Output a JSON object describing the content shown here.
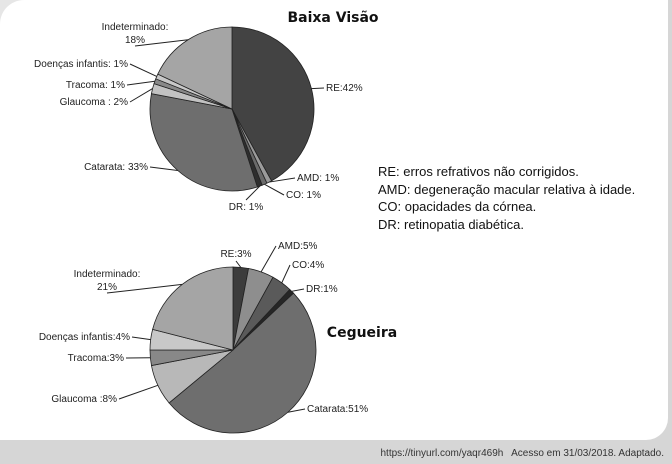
{
  "chart_data": [
    {
      "type": "pie",
      "title": "Baixa Visão",
      "slices": [
        {
          "label": "RE:42%",
          "category": "RE",
          "value": 42,
          "color": "#434343"
        },
        {
          "label": "AMD: 1%",
          "category": "AMD",
          "value": 1,
          "color": "#9a9a9a"
        },
        {
          "label": "CO: 1%",
          "category": "CO",
          "value": 1,
          "color": "#6a6a6a"
        },
        {
          "label": "DR: 1%",
          "category": "DR",
          "value": 1,
          "color": "#2e2e2e"
        },
        {
          "label": "Catarata: 33%",
          "category": "Catarata",
          "value": 33,
          "color": "#6e6e6e"
        },
        {
          "label": "Glaucoma : 2%",
          "category": "Glaucoma",
          "value": 2,
          "color": "#c2c2c2"
        },
        {
          "label": "Tracoma: 1%",
          "category": "Tracoma",
          "value": 1,
          "color": "#888888"
        },
        {
          "label": "Doenças infantis: 1%",
          "category": "Doenças infantis",
          "value": 1,
          "color": "#c8c8c8"
        },
        {
          "label": "Indeterminado:\n18%",
          "category": "Indeterminado",
          "value": 18,
          "color": "#a5a5a5"
        }
      ]
    },
    {
      "type": "pie",
      "title": "Cegueira",
      "slices": [
        {
          "label": "RE:3%",
          "category": "RE",
          "value": 3,
          "color": "#3c3c3c"
        },
        {
          "label": "AMD:5%",
          "category": "AMD",
          "value": 5,
          "color": "#8e8e8e"
        },
        {
          "label": "CO:4%",
          "category": "CO",
          "value": 4,
          "color": "#5a5a5a"
        },
        {
          "label": "DR:1%",
          "category": "DR",
          "value": 1,
          "color": "#262626"
        },
        {
          "label": "Catarata:51%",
          "category": "Catarata",
          "value": 51,
          "color": "#6e6e6e"
        },
        {
          "label": "Glaucoma :8%",
          "category": "Glaucoma",
          "value": 8,
          "color": "#b8b8b8"
        },
        {
          "label": "Tracoma:3%",
          "category": "Tracoma",
          "value": 3,
          "color": "#888888"
        },
        {
          "label": "Doenças infantis:4%",
          "category": "Doenças infantis",
          "value": 4,
          "color": "#c8c8c8"
        },
        {
          "label": "Indeterminado:\n21%",
          "category": "Indeterminado",
          "value": 21,
          "color": "#a5a5a5"
        }
      ]
    }
  ],
  "legend": [
    "RE: erros refrativos não corrigidos.",
    "AMD: degeneração macular relativa à idade.",
    "CO: opacidades da córnea.",
    "DR: retinopatia diabética."
  ],
  "footer": "https://tinyurl.com/yaqr469h   Acesso em 31/03/2018. Adaptado."
}
